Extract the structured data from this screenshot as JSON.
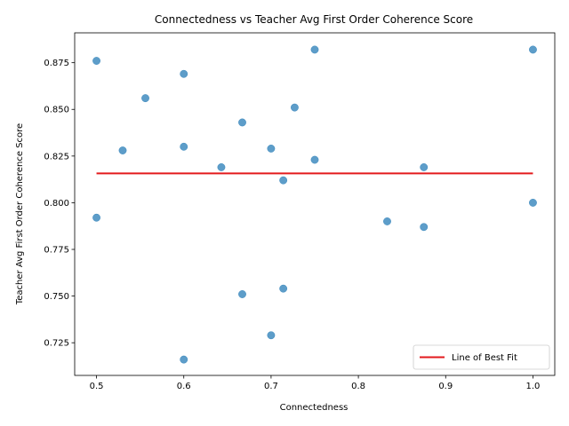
{
  "chart_data": {
    "type": "scatter",
    "title": "Connectedness vs Teacher Avg First Order Coherence Score",
    "xlabel": "Connectedness",
    "ylabel": "Teacher Avg First Order Coherence Score",
    "xlim": [
      0.475,
      1.025
    ],
    "ylim": [
      0.7075,
      0.891
    ],
    "xticks": [
      "0.5",
      "0.6",
      "0.7",
      "0.8",
      "0.9",
      "1.0"
    ],
    "yticks": [
      "0.725",
      "0.750",
      "0.775",
      "0.800",
      "0.825",
      "0.850",
      "0.875"
    ],
    "grid": false,
    "legend_placement": "lower-right",
    "series": [
      {
        "color": "#1f77b4",
        "points": [
          [
            0.5,
            0.876
          ],
          [
            0.5,
            0.792
          ],
          [
            0.53,
            0.828
          ],
          [
            0.556,
            0.856
          ],
          [
            0.6,
            0.869
          ],
          [
            0.6,
            0.83
          ],
          [
            0.6,
            0.716
          ],
          [
            0.643,
            0.819
          ],
          [
            0.667,
            0.843
          ],
          [
            0.667,
            0.751
          ],
          [
            0.7,
            0.829
          ],
          [
            0.7,
            0.729
          ],
          [
            0.714,
            0.812
          ],
          [
            0.714,
            0.754
          ],
          [
            0.727,
            0.851
          ],
          [
            0.75,
            0.882
          ],
          [
            0.75,
            0.823
          ],
          [
            0.833,
            0.79
          ],
          [
            0.875,
            0.819
          ],
          [
            0.875,
            0.787
          ],
          [
            1.0,
            0.882
          ],
          [
            1.0,
            0.8
          ]
        ]
      }
    ],
    "fit_line": {
      "name": "Line of Best Fit",
      "color": "#e31a1c",
      "x": [
        0.5,
        1.0
      ],
      "y": [
        0.8157,
        0.8157
      ]
    }
  }
}
